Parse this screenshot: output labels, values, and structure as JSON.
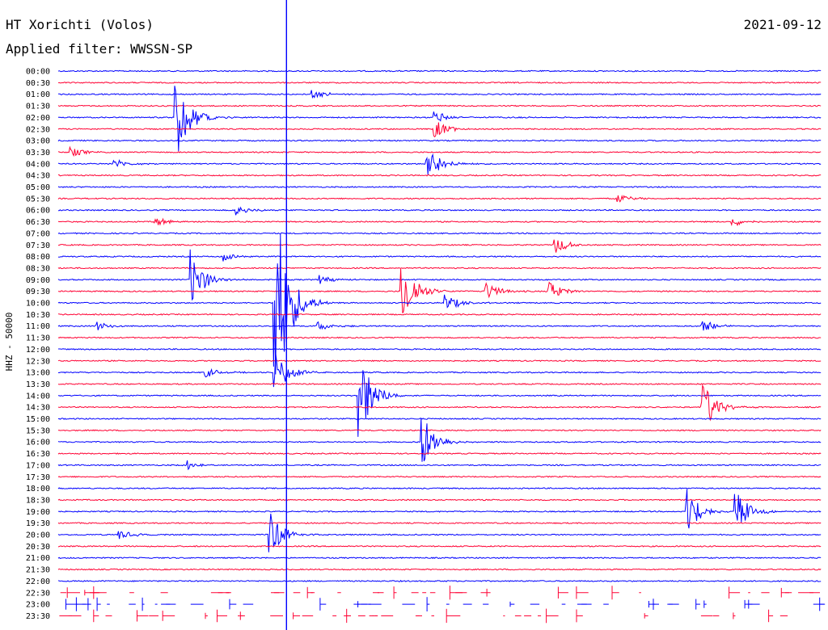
{
  "header": {
    "station": "HT Xorichti (Volos)",
    "filter": "Applied filter: WWSSN-SP",
    "date": "2021-09-12"
  },
  "chart_data": {
    "type": "line",
    "title": "HT Xorichti (Volos)",
    "subtitle": "Applied filter: WWSSN-SP",
    "ylabel": "HHZ - 50000",
    "row_labels": [
      "00:00",
      "00:30",
      "01:00",
      "01:30",
      "02:00",
      "02:30",
      "03:00",
      "03:30",
      "04:00",
      "04:30",
      "05:00",
      "05:30",
      "06:00",
      "06:30",
      "07:00",
      "07:30",
      "08:00",
      "08:30",
      "09:00",
      "09:30",
      "10:00",
      "10:30",
      "11:00",
      "11:30",
      "12:00",
      "12:30",
      "13:00",
      "13:30",
      "14:00",
      "14:30",
      "15:00",
      "15:30",
      "16:00",
      "16:30",
      "17:00",
      "17:30",
      "18:00",
      "18:30",
      "19:00",
      "19:30",
      "20:00",
      "20:30",
      "21:00",
      "21:30",
      "22:00",
      "22:30",
      "23:00",
      "23:30"
    ],
    "minutes_per_row": 30,
    "row_colors": [
      "#0000ff",
      "#ff0033"
    ],
    "data_available_fraction_last_rows": [
      1,
      1,
      0.3,
      0.3,
      0.12
    ],
    "events": [
      {
        "row": 2,
        "minute": 10,
        "amp": 1
      },
      {
        "row": 4,
        "minute": 4.6,
        "amp": 10
      },
      {
        "row": 4,
        "minute": 14.8,
        "amp": 1.5
      },
      {
        "row": 5,
        "minute": 14.8,
        "amp": 2
      },
      {
        "row": 7,
        "minute": 0.5,
        "amp": 1
      },
      {
        "row": 8,
        "minute": 2.2,
        "amp": 1
      },
      {
        "row": 8,
        "minute": 14.5,
        "amp": 4
      },
      {
        "row": 11,
        "minute": 22,
        "amp": 1
      },
      {
        "row": 12,
        "minute": 7,
        "amp": 1
      },
      {
        "row": 13,
        "minute": 3.8,
        "amp": 1
      },
      {
        "row": 13,
        "minute": 26.5,
        "amp": 1
      },
      {
        "row": 15,
        "minute": 19.5,
        "amp": 2
      },
      {
        "row": 16,
        "minute": 6.5,
        "amp": 1
      },
      {
        "row": 18,
        "minute": 5.2,
        "amp": 6
      },
      {
        "row": 18,
        "minute": 10.3,
        "amp": 1
      },
      {
        "row": 19,
        "minute": 13.5,
        "amp": 8
      },
      {
        "row": 19,
        "minute": 16.8,
        "amp": 2
      },
      {
        "row": 19,
        "minute": 19.3,
        "amp": 2
      },
      {
        "row": 20,
        "minute": 8.5,
        "amp": 26
      },
      {
        "row": 20,
        "minute": 15.2,
        "amp": 2
      },
      {
        "row": 22,
        "minute": 1.5,
        "amp": 1
      },
      {
        "row": 22,
        "minute": 10.2,
        "amp": 1
      },
      {
        "row": 22,
        "minute": 25.3,
        "amp": 1.5
      },
      {
        "row": 26,
        "minute": 5.8,
        "amp": 1
      },
      {
        "row": 26,
        "minute": 8.5,
        "amp": 5
      },
      {
        "row": 28,
        "minute": 11.8,
        "amp": 10
      },
      {
        "row": 29,
        "minute": 25.3,
        "amp": 6
      },
      {
        "row": 32,
        "minute": 14.3,
        "amp": 6
      },
      {
        "row": 34,
        "minute": 5.1,
        "amp": 1
      },
      {
        "row": 38,
        "minute": 24.7,
        "amp": 5
      },
      {
        "row": 38,
        "minute": 26.6,
        "amp": 5
      },
      {
        "row": 40,
        "minute": 8.3,
        "amp": 5
      },
      {
        "row": 40,
        "minute": 2.4,
        "amp": 1
      }
    ],
    "vertical_marker_minute": 8.97,
    "grid": false,
    "legend": "none"
  }
}
